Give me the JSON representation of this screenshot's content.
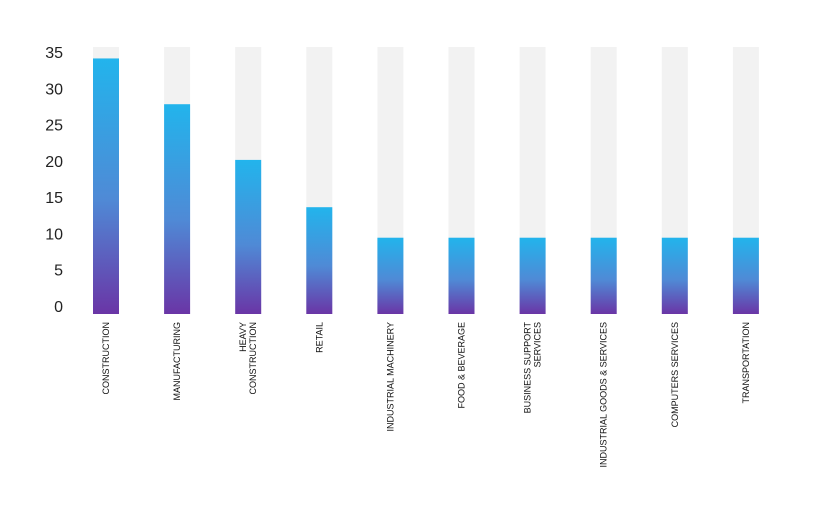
{
  "chart_data": {
    "type": "bar",
    "categories": [
      [
        "CONSTRUCTION"
      ],
      [
        "MANUFACTURING"
      ],
      [
        "HEAVY",
        "CONSTRUCTION"
      ],
      [
        "RETAIL"
      ],
      [
        "INDUSTRIAL MACHINERY"
      ],
      [
        "FOOD & BEVERAGE"
      ],
      [
        "BUSINESS SUPPORT",
        "SERVICES"
      ],
      [
        "INDUSTRIAL GOODS & SERVICES"
      ],
      [
        "COMPUTERS SERVICES"
      ],
      [
        "TRANSPORTATION"
      ]
    ],
    "values": [
      33.5,
      27.5,
      20.2,
      14,
      10,
      10,
      10,
      10,
      10,
      10
    ],
    "title": "",
    "xlabel": "",
    "ylabel": "",
    "ylim": [
      0,
      35
    ],
    "yticks": [
      0,
      5,
      10,
      15,
      20,
      25,
      30,
      35
    ],
    "grid": false,
    "background_track": true,
    "colors": {
      "bar_top": "#22b4ec",
      "bar_mid": "#4f8ad6",
      "bar_bottom": "#6a35a6",
      "track": "#f2f2f2",
      "axis_text": "#222222"
    }
  }
}
